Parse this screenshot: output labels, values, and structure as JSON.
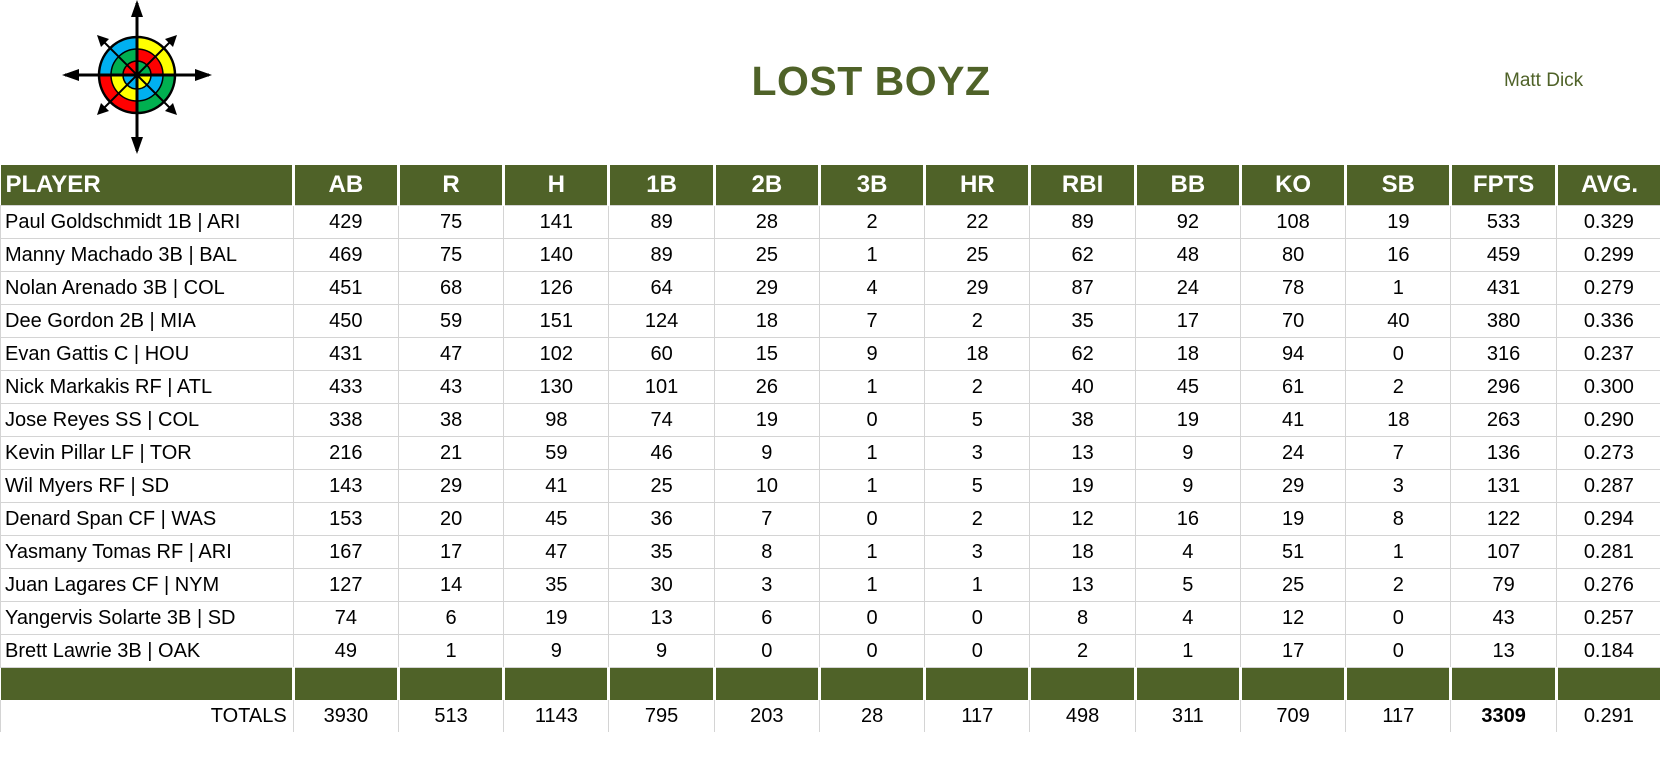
{
  "team": {
    "name": "LOST BOYZ",
    "owner": "Matt Dick"
  },
  "table": {
    "headers": [
      "PLAYER",
      "AB",
      "R",
      "H",
      "1B",
      "2B",
      "3B",
      "HR",
      "RBI",
      "BB",
      "KO",
      "SB",
      "FPTS",
      "AVG."
    ],
    "rows": [
      [
        "Paul Goldschmidt 1B | ARI",
        "429",
        "75",
        "141",
        "89",
        "28",
        "2",
        "22",
        "89",
        "92",
        "108",
        "19",
        "533",
        "0.329"
      ],
      [
        "Manny Machado 3B | BAL",
        "469",
        "75",
        "140",
        "89",
        "25",
        "1",
        "25",
        "62",
        "48",
        "80",
        "16",
        "459",
        "0.299"
      ],
      [
        "Nolan Arenado 3B | COL",
        "451",
        "68",
        "126",
        "64",
        "29",
        "4",
        "29",
        "87",
        "24",
        "78",
        "1",
        "431",
        "0.279"
      ],
      [
        "Dee Gordon 2B | MIA",
        "450",
        "59",
        "151",
        "124",
        "18",
        "7",
        "2",
        "35",
        "17",
        "70",
        "40",
        "380",
        "0.336"
      ],
      [
        "Evan Gattis C | HOU",
        "431",
        "47",
        "102",
        "60",
        "15",
        "9",
        "18",
        "62",
        "18",
        "94",
        "0",
        "316",
        "0.237"
      ],
      [
        "Nick Markakis RF | ATL",
        "433",
        "43",
        "130",
        "101",
        "26",
        "1",
        "2",
        "40",
        "45",
        "61",
        "2",
        "296",
        "0.300"
      ],
      [
        "Jose Reyes SS | COL",
        "338",
        "38",
        "98",
        "74",
        "19",
        "0",
        "5",
        "38",
        "19",
        "41",
        "18",
        "263",
        "0.290"
      ],
      [
        "Kevin Pillar LF | TOR",
        "216",
        "21",
        "59",
        "46",
        "9",
        "1",
        "3",
        "13",
        "9",
        "24",
        "7",
        "136",
        "0.273"
      ],
      [
        "Wil Myers RF | SD",
        "143",
        "29",
        "41",
        "25",
        "10",
        "1",
        "5",
        "19",
        "9",
        "29",
        "3",
        "131",
        "0.287"
      ],
      [
        "Denard Span CF | WAS",
        "153",
        "20",
        "45",
        "36",
        "7",
        "0",
        "2",
        "12",
        "16",
        "19",
        "8",
        "122",
        "0.294"
      ],
      [
        "Yasmany Tomas RF | ARI",
        "167",
        "17",
        "47",
        "35",
        "8",
        "1",
        "3",
        "18",
        "4",
        "51",
        "1",
        "107",
        "0.281"
      ],
      [
        "Juan Lagares CF | NYM",
        "127",
        "14",
        "35",
        "30",
        "3",
        "1",
        "1",
        "13",
        "5",
        "25",
        "2",
        "79",
        "0.276"
      ],
      [
        "Yangervis Solarte 3B | SD",
        "74",
        "6",
        "19",
        "13",
        "6",
        "0",
        "0",
        "8",
        "4",
        "12",
        "0",
        "43",
        "0.257"
      ],
      [
        "Brett Lawrie 3B | OAK",
        "49",
        "1",
        "9",
        "9",
        "0",
        "0",
        "0",
        "2",
        "1",
        "17",
        "0",
        "13",
        "0.184"
      ]
    ],
    "totals": {
      "label": "TOTALS",
      "values": [
        "3930",
        "513",
        "1143",
        "795",
        "203",
        "28",
        "117",
        "498",
        "311",
        "709",
        "117",
        "3309",
        "0.291"
      ]
    }
  },
  "colors": {
    "header_bg": "#4f6228",
    "title": "#4f6228",
    "compass": [
      "#ff0000",
      "#ffff00",
      "#00b050",
      "#00b0f0"
    ]
  },
  "logo": {
    "icon": "compass-target-icon"
  }
}
